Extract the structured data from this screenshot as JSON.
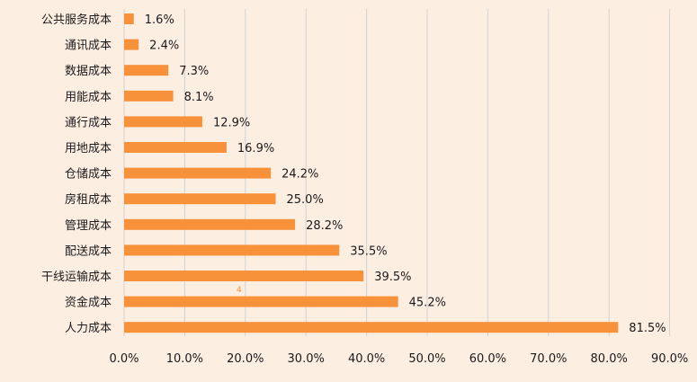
{
  "chart_data": {
    "type": "bar",
    "orientation": "horizontal",
    "categories": [
      "公共服务成本",
      "通讯成本",
      "数据成本",
      "用能成本",
      "通行成本",
      "用地成本",
      "仓储成本",
      "房租成本",
      "管理成本",
      "配送成本",
      "干线运输成本",
      "资金成本",
      "人力成本"
    ],
    "values": [
      1.6,
      2.4,
      7.3,
      8.1,
      12.9,
      16.9,
      24.2,
      25.0,
      28.2,
      35.5,
      39.5,
      45.2,
      81.5
    ],
    "value_labels": [
      "1.6%",
      "2.4%",
      "7.3%",
      "8.1%",
      "12.9%",
      "16.9%",
      "24.2%",
      "25.0%",
      "28.2%",
      "35.5%",
      "39.5%",
      "45.2%",
      "81.5%"
    ],
    "xlim": [
      0,
      90
    ],
    "ticks": [
      0,
      10,
      20,
      30,
      40,
      50,
      60,
      70,
      80,
      90
    ],
    "tick_labels": [
      "0.0%",
      "10.0%",
      "20.0%",
      "30.0%",
      "40.0%",
      "50.0%",
      "60.0%",
      "70.0%",
      "80.0%",
      "90.0%"
    ],
    "grid": true,
    "bar_color": "#f7923a",
    "background_color": "#fdeee2",
    "annotation": "4"
  }
}
